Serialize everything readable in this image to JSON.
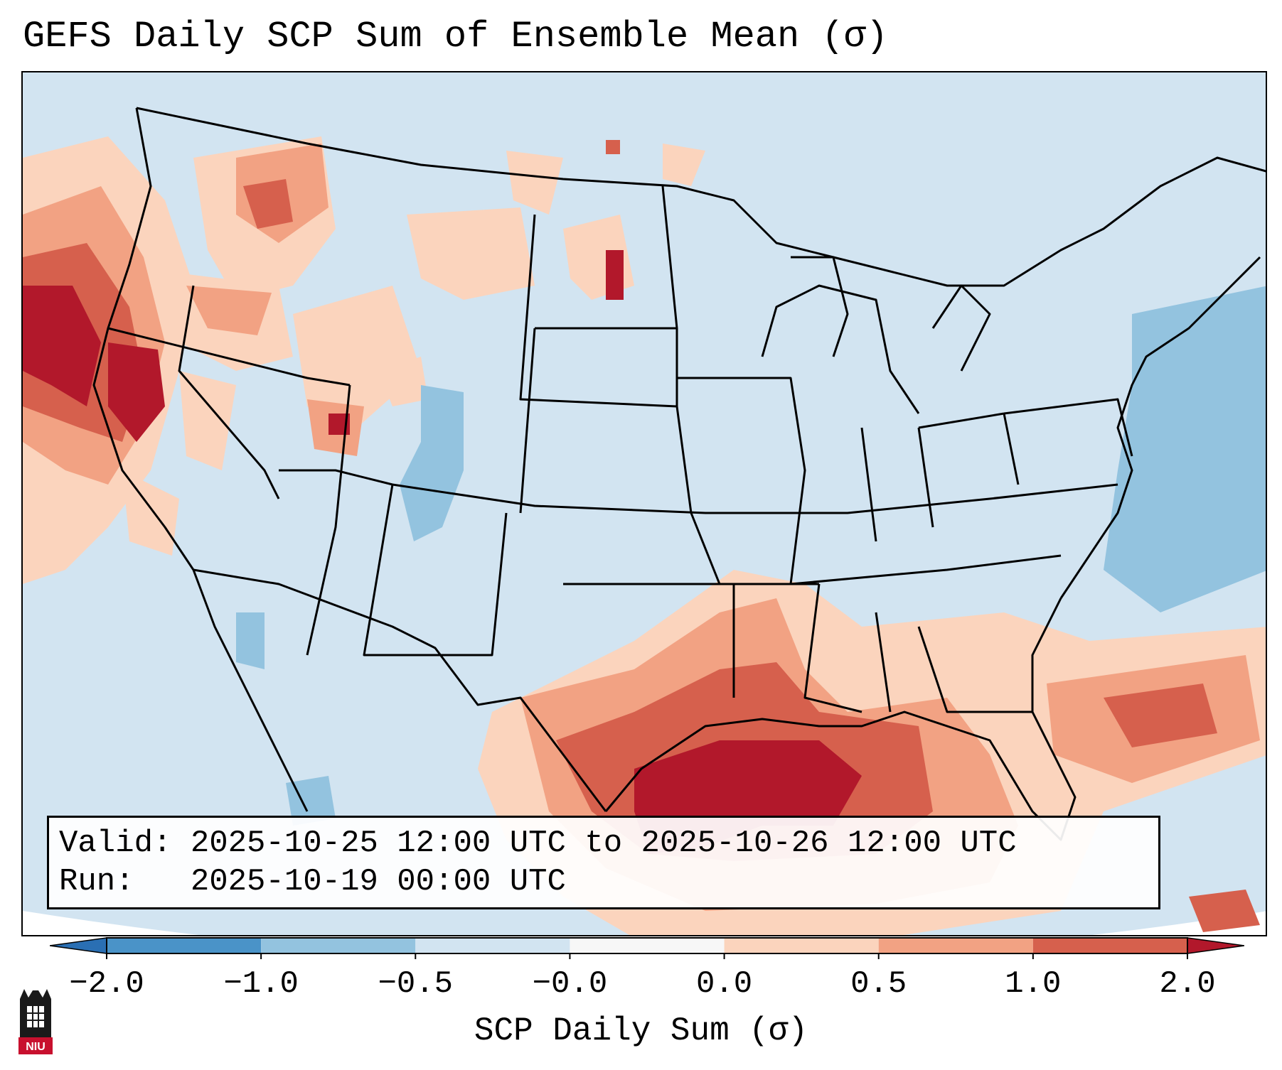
{
  "title": "GEFS Daily SCP Sum of Ensemble Mean (σ)",
  "info": {
    "valid_line": "Valid: 2025-10-25 12:00 UTC to 2025-10-26 12:00 UTC",
    "run_line": "Run:   2025-10-19 00:00 UTC"
  },
  "colorbar": {
    "label": "SCP Daily Sum (σ)",
    "ticks": [
      "−2.0",
      "−1.0",
      "−0.5",
      "−0.0",
      "0.0",
      "0.5",
      "1.0",
      "2.0"
    ],
    "bins": [
      {
        "range": "< -2.0",
        "color": "#2a6fb3"
      },
      {
        "range": "-2.0 to -1.0",
        "color": "#4a93c8"
      },
      {
        "range": "-1.0 to -0.5",
        "color": "#93c3df"
      },
      {
        "range": "-0.5 to -0.0",
        "color": "#d2e4f1"
      },
      {
        "range": "-0.0 to 0.0",
        "color": "#f7f7f7"
      },
      {
        "range": "0.0 to 0.5",
        "color": "#fbd4bd"
      },
      {
        "range": "0.5 to 1.0",
        "color": "#f2a283"
      },
      {
        "range": "1.0 to 2.0",
        "color": "#d6604d"
      },
      {
        "range": "> 2.0",
        "color": "#b2182b"
      }
    ]
  },
  "logo": {
    "text": "NIU",
    "color": "#c8102e"
  }
}
